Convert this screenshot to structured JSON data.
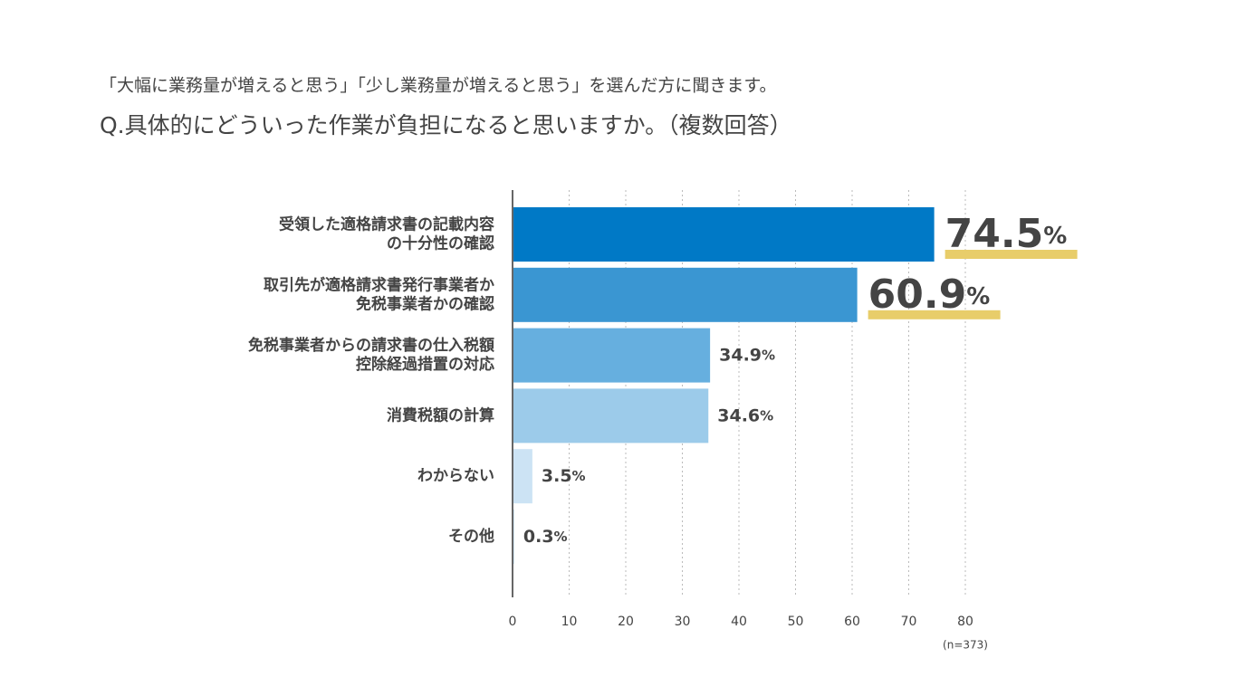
{
  "chart_data": {
    "type": "barh",
    "subtitle": "「大幅に業務量が増えると思う」「少し業務量が増えると思う」を選んだ方に聞きます。",
    "title": "Q.具体的にどういった作業が負担になると思いますか。（複数回答）",
    "categories": [
      [
        "受領した適格請求書の記載内容",
        "の十分性の確認"
      ],
      [
        "取引先が適格請求書発行事業者か",
        "免税事業者かの確認"
      ],
      [
        "免税事業者からの請求書の仕入税額",
        "控除経過措置の対応"
      ],
      [
        "消費税額の計算"
      ],
      [
        "わからない"
      ],
      [
        "その他"
      ]
    ],
    "values": [
      74.5,
      60.9,
      34.9,
      34.6,
      3.5,
      0.3
    ],
    "value_labels": [
      "74.5%",
      "60.9%",
      "34.9%",
      "34.6%",
      "3.5%",
      "0.3%"
    ],
    "colors": [
      "#0079c6",
      "#3a96d2",
      "#66afdf",
      "#9ccbea",
      "#cce3f4",
      "#cce3f4"
    ],
    "highlight_count": 2,
    "xlim": [
      0,
      80
    ],
    "xticks": [
      0,
      10,
      20,
      30,
      40,
      50,
      60,
      70,
      80
    ],
    "grid": true,
    "note": "(n=373)"
  }
}
